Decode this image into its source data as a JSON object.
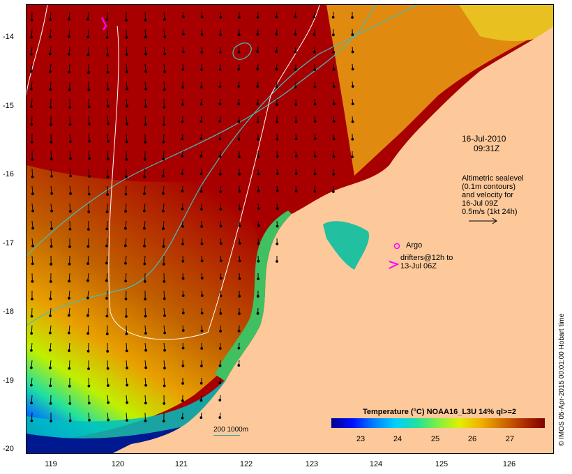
{
  "date_block": {
    "date": "16-Jul-2010",
    "time": "09:31Z"
  },
  "sealevel_note": [
    "Altimetric sealevel",
    "(0.1m contours)",
    "and velocity for",
    "16-Jul 09Z",
    "0.5m/s (1kt 24h)"
  ],
  "legend": {
    "argo": "Argo",
    "drifters_line1": "drifters@12h to",
    "drifters_line2": "13-Jul 06Z"
  },
  "colorbar": {
    "title": "Temperature (°C) NOAA16_L3U 14% ql>=2",
    "ticks": [
      "23",
      "24",
      "25",
      "26",
      "27"
    ]
  },
  "scale": {
    "label": "200  1000m"
  },
  "credit": "© IMOS 05-Apr-2015 00:01:00 Hobart time",
  "axes": {
    "y_ticks": [
      "-14",
      "-15",
      "-16",
      "-17",
      "-18",
      "-19",
      "-20"
    ],
    "x_ticks": [
      "119",
      "120",
      "121",
      "122",
      "123",
      "124",
      "125",
      "126"
    ]
  },
  "colors": {
    "land": "#fdc99a",
    "ocean_warm": "#a80000",
    "contour": "#40c0c0",
    "marker": "#ff00ff"
  }
}
